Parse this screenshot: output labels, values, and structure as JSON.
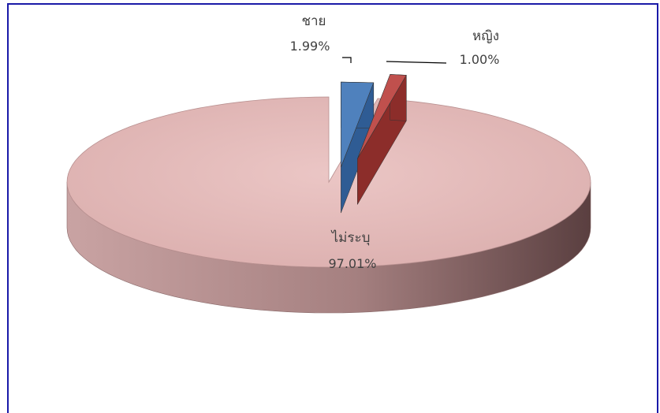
{
  "chart_data": {
    "type": "pie",
    "style": "3d-exploded",
    "title": "",
    "labels": [
      "ชาย",
      "หญิง",
      "ไม่ระบุ"
    ],
    "values": [
      1.99,
      1.0,
      97.01
    ],
    "value_labels": [
      "1.99%",
      "1.00%",
      "97.01%"
    ],
    "colors": {
      "top": [
        "#4f81bd",
        "#c0504d",
        "#e6b9b8"
      ],
      "side": [
        "#2f5c94",
        "#8c2d2a",
        "#a87c7c"
      ]
    },
    "legend": "none",
    "exploded": [
      true,
      true,
      false
    ]
  }
}
